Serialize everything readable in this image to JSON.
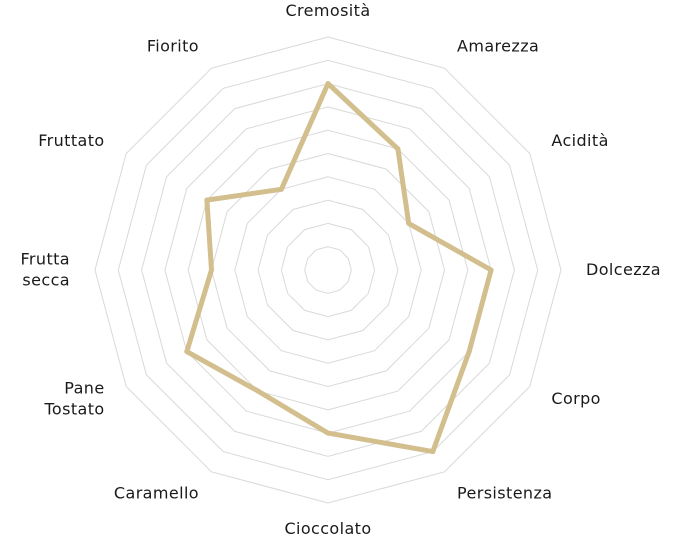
{
  "chart_data": {
    "type": "radar",
    "title": "",
    "categories": [
      "Cremosità",
      "Amarezza",
      "Acidità",
      "Dolcezza",
      "Corpo",
      "Persistenza",
      "Cioccolato",
      "Caramello",
      "Pane Tostato",
      "Frutta secca",
      "Fruttato",
      "Fiorito"
    ],
    "series": [
      {
        "values": [
          8,
          6,
          4,
          7,
          7,
          9,
          7,
          6,
          7,
          5,
          6,
          4
        ],
        "color": "#d2bf8d"
      }
    ],
    "range": [
      0,
      10
    ],
    "rings": 10,
    "grid": true,
    "grid_color": "#d9d9d9",
    "legend": "none"
  }
}
